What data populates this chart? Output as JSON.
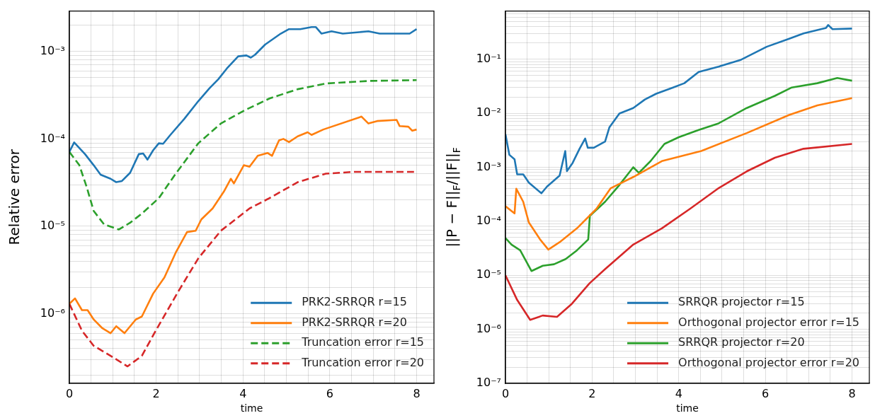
{
  "chart_data": [
    {
      "type": "line",
      "ylabel": "Relative error",
      "xlabel": "time",
      "log": "y",
      "grid": true,
      "legend": "bottom right",
      "marker": "none",
      "xlim": [
        0,
        8.4
      ],
      "xticks": [
        0,
        {
          "value": 0.5,
          "label": null
        },
        {
          "value": 1,
          "label": null
        },
        {
          "value": 1.5,
          "label": null
        },
        2,
        {
          "value": 2.5,
          "label": null
        },
        {
          "value": 3,
          "label": null
        },
        {
          "value": 3.5,
          "label": null
        },
        4,
        {
          "value": 4.5,
          "label": null
        },
        {
          "value": 5,
          "label": null
        },
        {
          "value": 5.5,
          "label": null
        },
        6,
        {
          "value": 6.5,
          "label": null
        },
        {
          "value": 7,
          "label": null
        },
        {
          "value": 7.5,
          "label": null
        },
        8
      ],
      "ylim": [
        1.6e-07,
        0.0029
      ],
      "yticks": [
        {
          "value": 2e-07,
          "label": null
        },
        {
          "value": 3e-07,
          "label": null
        },
        {
          "value": 4e-07,
          "label": null
        },
        {
          "value": 5e-07,
          "label": null
        },
        {
          "value": 6e-07,
          "label": null
        },
        {
          "value": 7e-07,
          "label": null
        },
        {
          "value": 8e-07,
          "label": null
        },
        {
          "value": 9e-07,
          "label": null
        },
        {
          "value": 1e-06,
          "label": "10⁻⁶"
        },
        {
          "value": 2e-06,
          "label": null
        },
        {
          "value": 3e-06,
          "label": null
        },
        {
          "value": 4e-06,
          "label": null
        },
        {
          "value": 5e-06,
          "label": null
        },
        {
          "value": 6e-06,
          "label": null
        },
        {
          "value": 7e-06,
          "label": null
        },
        {
          "value": 8e-06,
          "label": null
        },
        {
          "value": 9e-06,
          "label": null
        },
        {
          "value": 1e-05,
          "label": "10⁻⁵"
        },
        {
          "value": 2e-05,
          "label": null
        },
        {
          "value": 3e-05,
          "label": null
        },
        {
          "value": 4e-05,
          "label": null
        },
        {
          "value": 5e-05,
          "label": null
        },
        {
          "value": 6e-05,
          "label": null
        },
        {
          "value": 7e-05,
          "label": null
        },
        {
          "value": 8e-05,
          "label": null
        },
        {
          "value": 9e-05,
          "label": null
        },
        {
          "value": 0.0001,
          "label": "10⁻⁴"
        },
        {
          "value": 0.0002,
          "label": null
        },
        {
          "value": 0.0003,
          "label": null
        },
        {
          "value": 0.0004,
          "label": null
        },
        {
          "value": 0.0005,
          "label": null
        },
        {
          "value": 0.0006,
          "label": null
        },
        {
          "value": 0.0007,
          "label": null
        },
        {
          "value": 0.0008,
          "label": null
        },
        {
          "value": 0.0009,
          "label": null
        },
        {
          "value": 0.001,
          "label": "10⁻³"
        },
        {
          "value": 0.002,
          "label": null
        }
      ],
      "series": [
        {
          "name": "PRK2-SRRQR r=15",
          "color": "#1f77b4",
          "line_style": "solid",
          "x": [
            0,
            0.11,
            0.36,
            0.56,
            0.72,
            0.95,
            1.08,
            1.21,
            1.4,
            1.6,
            1.7,
            1.8,
            1.93,
            2.06,
            2.16,
            2.32,
            2.65,
            2.97,
            3.23,
            3.43,
            3.63,
            3.89,
            4.08,
            4.18,
            4.28,
            4.51,
            4.87,
            5.06,
            5.32,
            5.58,
            5.68,
            5.81,
            6.04,
            6.3,
            6.89,
            7.15,
            7.41,
            7.67,
            7.84,
            8.0
          ],
          "values": [
            7.1e-05,
            9.1e-05,
            6.7e-05,
            5e-05,
            3.9e-05,
            3.5e-05,
            3.2e-05,
            3.3e-05,
            4.1e-05,
            6.7e-05,
            6.8e-05,
            5.8e-05,
            7.4e-05,
            8.9e-05,
            8.8e-05,
            0.00011,
            0.00017,
            0.00027,
            0.00038,
            0.00048,
            0.00064,
            0.00088,
            0.0009,
            0.00085,
            0.00092,
            0.0012,
            0.0016,
            0.0018,
            0.0018,
            0.0019,
            0.0019,
            0.0016,
            0.0017,
            0.0016,
            0.0017,
            0.0016,
            0.0016,
            0.0016,
            0.0016,
            0.0018
          ]
        },
        {
          "name": "PRK2-SRRQR r=20",
          "color": "#ff7f0e",
          "line_style": "solid",
          "x": [
            0,
            0.13,
            0.29,
            0.42,
            0.56,
            0.75,
            0.95,
            1.08,
            1.27,
            1.53,
            1.67,
            1.93,
            2.19,
            2.45,
            2.71,
            2.91,
            3.04,
            3.3,
            3.56,
            3.72,
            3.79,
            4.02,
            4.15,
            4.34,
            4.57,
            4.67,
            4.83,
            4.93,
            5.06,
            5.26,
            5.49,
            5.58,
            5.85,
            6.73,
            6.89,
            7.09,
            7.54,
            7.61,
            7.81,
            7.9,
            8.0
          ],
          "values": [
            1.3e-06,
            1.5e-06,
            1.1e-06,
            1.1e-06,
            8.6e-07,
            6.9e-07,
            6e-07,
            7.2e-07,
            6e-07,
            8.6e-07,
            9.3e-07,
            1.7e-06,
            2.6e-06,
            5e-06,
            8.6e-06,
            8.9e-06,
            1.2e-05,
            1.6e-05,
            2.5e-05,
            3.5e-05,
            3.1e-05,
            5e-05,
            4.8e-05,
            6.4e-05,
            6.9e-05,
            6.4e-05,
            9.6e-05,
            0.0001,
            9.2e-05,
            0.000107,
            0.000119,
            0.000111,
            0.000128,
            0.00018,
            0.00015,
            0.00016,
            0.000165,
            0.00014,
            0.000138,
            0.000124,
            0.000128
          ]
        },
        {
          "name": "Truncation error r=15",
          "color": "#2ca02c",
          "line_style": "dashed",
          "x": [
            0,
            0.23,
            0.4,
            0.56,
            0.8,
            1.14,
            1.4,
            1.67,
            1.8,
            2.06,
            2.45,
            2.97,
            3.49,
            4.02,
            4.61,
            5.26,
            5.91,
            6.89,
            8.0
          ],
          "values": [
            7.1e-05,
            5e-05,
            2.8e-05,
            1.5e-05,
            1.05e-05,
            9.2e-06,
            1.1e-05,
            1.4e-05,
            1.6e-05,
            2.1e-05,
            4e-05,
            8.9e-05,
            0.00015,
            0.00021,
            0.00029,
            0.00037,
            0.00043,
            0.00046,
            0.00047
          ]
        },
        {
          "name": "Truncation error r=20",
          "color": "#d62728",
          "line_style": "dashed",
          "x": [
            0,
            0.29,
            0.56,
            0.95,
            1.34,
            1.67,
            1.99,
            2.51,
            2.97,
            3.49,
            4.15,
            4.61,
            5.26,
            5.91,
            6.56,
            7.94
          ],
          "values": [
            1.3e-06,
            6.4e-07,
            4.3e-07,
            3.3e-07,
            2.5e-07,
            3.3e-07,
            6.4e-07,
            1.8e-06,
            4.3e-06,
            8.9e-06,
            1.6e-05,
            2.1e-05,
            3.2e-05,
            4e-05,
            4.2e-05,
            4.2e-05
          ]
        }
      ]
    },
    {
      "type": "line",
      "ylabel": "||P − F||$_{F}$/||F||$_{F}$",
      "xlabel": "time",
      "log": "y",
      "grid": true,
      "legend": "bottom right",
      "marker": "none",
      "xlim": [
        0,
        8.4
      ],
      "xticks": [
        0,
        {
          "value": 0.5,
          "label": null
        },
        {
          "value": 1,
          "label": null
        },
        {
          "value": 1.5,
          "label": null
        },
        2,
        {
          "value": 2.5,
          "label": null
        },
        {
          "value": 3,
          "label": null
        },
        {
          "value": 3.5,
          "label": null
        },
        4,
        {
          "value": 4.5,
          "label": null
        },
        {
          "value": 5,
          "label": null
        },
        {
          "value": 5.5,
          "label": null
        },
        6,
        {
          "value": 6.5,
          "label": null
        },
        {
          "value": 7,
          "label": null
        },
        {
          "value": 7.5,
          "label": null
        },
        8
      ],
      "ylim": [
        1e-07,
        0.78
      ],
      "yticks": [
        {
          "value": 1e-07,
          "label": "10⁻⁷"
        },
        {
          "value": 2e-07,
          "label": null
        },
        {
          "value": 3e-07,
          "label": null
        },
        {
          "value": 4e-07,
          "label": null
        },
        {
          "value": 5e-07,
          "label": null
        },
        {
          "value": 6e-07,
          "label": null
        },
        {
          "value": 7e-07,
          "label": null
        },
        {
          "value": 8e-07,
          "label": null
        },
        {
          "value": 9e-07,
          "label": null
        },
        {
          "value": 1e-06,
          "label": "10⁻⁶"
        },
        {
          "value": 2e-06,
          "label": null
        },
        {
          "value": 3e-06,
          "label": null
        },
        {
          "value": 4e-06,
          "label": null
        },
        {
          "value": 5e-06,
          "label": null
        },
        {
          "value": 6e-06,
          "label": null
        },
        {
          "value": 7e-06,
          "label": null
        },
        {
          "value": 8e-06,
          "label": null
        },
        {
          "value": 9e-06,
          "label": null
        },
        {
          "value": 1e-05,
          "label": "10⁻⁵"
        },
        {
          "value": 2e-05,
          "label": null
        },
        {
          "value": 3e-05,
          "label": null
        },
        {
          "value": 4e-05,
          "label": null
        },
        {
          "value": 5e-05,
          "label": null
        },
        {
          "value": 6e-05,
          "label": null
        },
        {
          "value": 7e-05,
          "label": null
        },
        {
          "value": 8e-05,
          "label": null
        },
        {
          "value": 9e-05,
          "label": null
        },
        {
          "value": 0.0001,
          "label": "10⁻⁴"
        },
        {
          "value": 0.0002,
          "label": null
        },
        {
          "value": 0.0003,
          "label": null
        },
        {
          "value": 0.0004,
          "label": null
        },
        {
          "value": 0.0005,
          "label": null
        },
        {
          "value": 0.0006,
          "label": null
        },
        {
          "value": 0.0007,
          "label": null
        },
        {
          "value": 0.0008,
          "label": null
        },
        {
          "value": 0.0009,
          "label": null
        },
        {
          "value": 0.001,
          "label": "10⁻³"
        },
        {
          "value": 0.002,
          "label": null
        },
        {
          "value": 0.003,
          "label": null
        },
        {
          "value": 0.004,
          "label": null
        },
        {
          "value": 0.005,
          "label": null
        },
        {
          "value": 0.006,
          "label": null
        },
        {
          "value": 0.007,
          "label": null
        },
        {
          "value": 0.008,
          "label": null
        },
        {
          "value": 0.009,
          "label": null
        },
        {
          "value": 0.01,
          "label": "10⁻²"
        },
        {
          "value": 0.02,
          "label": null
        },
        {
          "value": 0.03,
          "label": null
        },
        {
          "value": 0.04,
          "label": null
        },
        {
          "value": 0.05,
          "label": null
        },
        {
          "value": 0.06,
          "label": null
        },
        {
          "value": 0.07,
          "label": null
        },
        {
          "value": 0.08,
          "label": null
        },
        {
          "value": 0.09,
          "label": null
        },
        {
          "value": 0.1,
          "label": "10⁻¹"
        },
        {
          "value": 0.2,
          "label": null
        },
        {
          "value": 0.3,
          "label": null
        },
        {
          "value": 0.4,
          "label": null
        },
        {
          "value": 0.5,
          "label": null
        },
        {
          "value": 0.6,
          "label": null
        },
        {
          "value": 0.7,
          "label": null
        }
      ],
      "series": [
        {
          "name": "SRRQR projector r=15",
          "color": "#1f77b4",
          "line_style": "solid",
          "x": [
            0,
            0.09,
            0.21,
            0.27,
            0.41,
            0.54,
            0.83,
            0.96,
            1.25,
            1.38,
            1.42,
            1.55,
            1.71,
            1.84,
            1.9,
            2.04,
            2.3,
            2.4,
            2.63,
            2.95,
            3.22,
            3.48,
            3.87,
            4.13,
            4.46,
            4.92,
            5.44,
            6.03,
            6.55,
            6.88,
            7.4,
            7.45,
            7.55,
            8.0
          ],
          "values": [
            0.0041,
            0.0017,
            0.0014,
            0.00074,
            0.00074,
            0.00052,
            0.00033,
            0.00044,
            0.0007,
            0.002,
            0.00085,
            0.0012,
            0.0022,
            0.0034,
            0.0023,
            0.0023,
            0.003,
            0.0055,
            0.0099,
            0.0125,
            0.018,
            0.023,
            0.03,
            0.036,
            0.058,
            0.073,
            0.098,
            0.17,
            0.24,
            0.3,
            0.38,
            0.43,
            0.36,
            0.37
          ]
        },
        {
          "name": "Orthogonal projector error r=15",
          "color": "#ff7f0e",
          "line_style": "solid",
          "x": [
            0,
            0.21,
            0.25,
            0.41,
            0.54,
            0.8,
            0.99,
            1.25,
            1.65,
            2.1,
            2.43,
            2.95,
            3.61,
            4.52,
            5.57,
            6.55,
            7.2,
            8.0
          ],
          "values": [
            0.00019,
            0.00014,
            0.0004,
            0.00023,
            9.5e-05,
            4.6e-05,
            3e-05,
            4.1e-05,
            7.4e-05,
            0.00017,
            0.00041,
            0.00066,
            0.0013,
            0.002,
            0.0043,
            0.0093,
            0.014,
            0.019
          ]
        },
        {
          "name": "SRRQR projector r=20",
          "color": "#2ca02c",
          "line_style": "solid",
          "x": [
            0,
            0.14,
            0.34,
            0.6,
            0.86,
            1.12,
            1.39,
            1.65,
            1.91,
            1.95,
            1.97,
            2.3,
            2.63,
            2.95,
            3.08,
            3.35,
            3.67,
            4.0,
            4.46,
            4.92,
            5.57,
            6.22,
            6.61,
            7.2,
            7.66,
            8.0
          ],
          "values": [
            4.9e-05,
            3.7e-05,
            2.9e-05,
            1.2e-05,
            1.5e-05,
            1.6e-05,
            2e-05,
            2.9e-05,
            4.6e-05,
            0.00013,
            0.00013,
            0.00023,
            0.00047,
            0.001,
            0.00079,
            0.0013,
            0.0027,
            0.0036,
            0.0049,
            0.0065,
            0.0125,
            0.021,
            0.03,
            0.036,
            0.045,
            0.04
          ]
        },
        {
          "name": "Orthogonal projector error r=20",
          "color": "#d62728",
          "line_style": "solid",
          "x": [
            0,
            0.27,
            0.57,
            0.86,
            1.19,
            1.52,
            1.94,
            2.3,
            2.95,
            3.61,
            4.26,
            4.92,
            5.57,
            6.22,
            6.88,
            8.0
          ],
          "values": [
            1e-05,
            3.5e-06,
            1.5e-06,
            1.8e-06,
            1.7e-06,
            2.9e-06,
            7.1e-06,
            1.3e-05,
            3.7e-05,
            7.4e-05,
            0.00017,
            0.00041,
            0.00084,
            0.0015,
            0.0022,
            0.0027
          ]
        }
      ]
    }
  ]
}
